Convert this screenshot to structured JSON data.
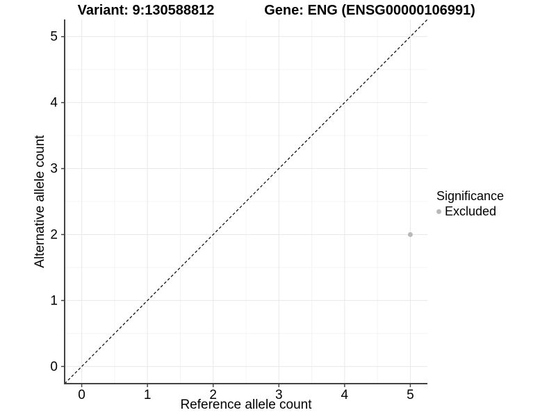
{
  "titles": {
    "left": "Variant: 9:130588812",
    "right": "Gene: ENG (ENSG00000106991)"
  },
  "chart_data": {
    "type": "scatter",
    "xlabel": "Reference allele count",
    "ylabel": "Alternative allele count",
    "xlim": [
      -0.26,
      5.26
    ],
    "ylim": [
      -0.26,
      5.26
    ],
    "xticks": [
      0,
      1,
      2,
      3,
      4,
      5
    ],
    "yticks": [
      0,
      1,
      2,
      3,
      4,
      5
    ],
    "minor_step": 0.5,
    "grid": "major+minor",
    "series": [
      {
        "name": "Excluded",
        "color": "#b9b9b9",
        "points": [
          {
            "x": 5,
            "y": 2
          }
        ]
      }
    ],
    "reference_line": {
      "kind": "identity",
      "style": "dashed",
      "color": "#000000"
    },
    "legend": {
      "title": "Significance",
      "position": "right",
      "items": [
        {
          "label": "Excluded",
          "color": "#b9b9b9"
        }
      ]
    },
    "colors": {
      "background": "#ffffff",
      "axis_line": "#434343",
      "tick_label": "#000000",
      "grid_major": "#e8e8e8",
      "grid_minor": "#f4f4f4"
    }
  }
}
